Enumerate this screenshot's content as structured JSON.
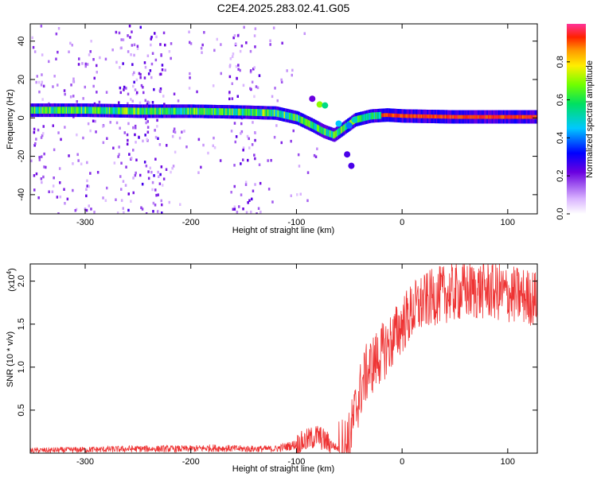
{
  "title": "C2E4.2025.283.02.41.G05",
  "chart_data": [
    {
      "type": "heatmap",
      "xlabel": "Height of straight line (km)",
      "ylabel": "Frequency (Hz)",
      "xlim": [
        -352,
        128
      ],
      "ylim": [
        -50,
        49
      ],
      "xticks": [
        -300,
        -200,
        -100,
        0,
        100
      ],
      "yticks": [
        -40,
        -20,
        0,
        20,
        40
      ],
      "ridge": {
        "x": [
          -350,
          -300,
          -250,
          -200,
          -150,
          -120,
          -100,
          -85,
          -75,
          -65,
          -55,
          -45,
          -30,
          -15,
          0,
          50,
          100,
          128
        ],
        "y": [
          4,
          4,
          3.5,
          3.5,
          3,
          2.5,
          0,
          -4,
          -7,
          -9,
          -5,
          -1,
          1,
          1.5,
          1,
          0.5,
          0.5,
          0.5
        ]
      },
      "colorbar": {
        "label": "Normalized spectral amplitude",
        "range": [
          0,
          1
        ],
        "ticks": [
          0.0,
          0.2,
          0.4,
          0.6,
          0.8
        ]
      }
    },
    {
      "type": "line",
      "xlabel": "Height of straight line (km)",
      "ylabel": "SNR (10 * v/v)",
      "scale_label": "(x10",
      "scale_exp": "4",
      "scale_close": ")",
      "xlim": [
        -352,
        128
      ],
      "ylim": [
        0,
        2.2
      ],
      "xticks": [
        -300,
        -200,
        -100,
        0,
        100
      ],
      "yticks": [
        0.5,
        1.0,
        1.5,
        2.0
      ],
      "ytick_labels": [
        "0.5",
        "1.0",
        "1.5",
        "2.0"
      ],
      "color": "#ee3333",
      "series": [
        {
          "x": [
            -352,
            -300,
            -250,
            -200,
            -180,
            -150,
            -120,
            -100,
            -90,
            -80,
            -70,
            -60,
            -50,
            -45,
            -40,
            -35,
            -30,
            -20,
            -10,
            0,
            10,
            20,
            30,
            40,
            60,
            80,
            100,
            128
          ],
          "y": [
            0.03,
            0.04,
            0.05,
            0.05,
            0.06,
            0.05,
            0.05,
            0.1,
            0.15,
            0.2,
            0.12,
            0.05,
            0.15,
            0.45,
            0.7,
            0.9,
            1.0,
            1.15,
            1.3,
            1.5,
            1.65,
            1.75,
            1.82,
            1.85,
            1.88,
            1.9,
            1.85,
            1.8
          ]
        }
      ]
    }
  ]
}
